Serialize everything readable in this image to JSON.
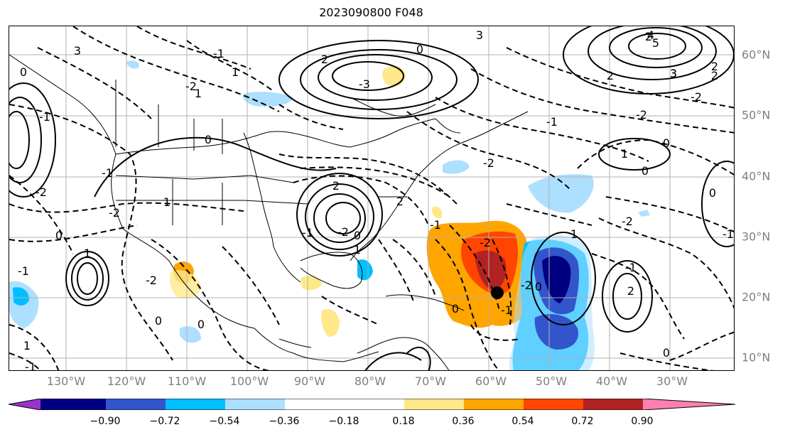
{
  "title": "2023090800 F048",
  "longitude_labels": [
    "130°W",
    "120°W",
    "110°W",
    "100°W",
    "90°W",
    "80°W",
    "70°W",
    "60°W",
    "50°W",
    "40°W",
    "30°W"
  ],
  "latitude_labels": [
    "60°N",
    "50°N",
    "40°N",
    "30°N",
    "20°N",
    "10°N"
  ],
  "colorbar": {
    "colors": [
      "#9933cc",
      "#000080",
      "#3355cc",
      "#00bfff",
      "#addfff",
      "#ffffff",
      "#ffe88a",
      "#ffa500",
      "#ff4500",
      "#b22222",
      "#ff80b0"
    ],
    "tick_labels": [
      "−0.90",
      "−0.72",
      "−0.54",
      "−0.36",
      "−0.18",
      "0.18",
      "0.36",
      "0.54",
      "0.72",
      "0.90"
    ]
  },
  "contour_labels": [
    "3",
    "0",
    "-1",
    "1",
    "-2",
    "2",
    "-3",
    "0",
    "3",
    "2",
    "2",
    "1",
    "0",
    "-1",
    "3",
    "-2",
    "2",
    "4",
    "5",
    "3",
    "2",
    "-2",
    "-1",
    "-2",
    "1",
    "0",
    "0",
    "-1",
    "-2",
    "0",
    "-1",
    "-2",
    "1",
    "-2",
    "1",
    "0",
    "1",
    "-1",
    "0",
    "2",
    "-2",
    "-1",
    "2",
    "-1",
    "1",
    "0",
    "-2",
    "-1",
    "-2",
    "0",
    "0",
    "-2",
    "2",
    "1",
    "-1",
    "0",
    "0",
    "-1"
  ],
  "marker": {
    "lon": -59.5,
    "lat": 21.0
  }
}
